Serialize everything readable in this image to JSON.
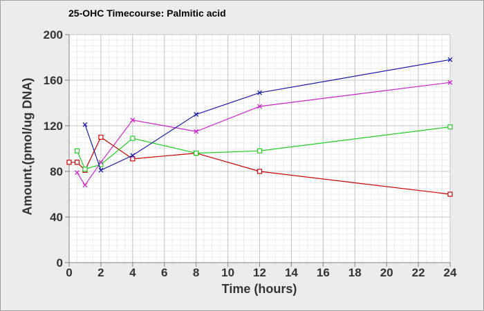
{
  "chart_data": {
    "type": "line",
    "title": "25-OHC Timecourse: Palmitic acid",
    "xlabel": "Time (hours)",
    "ylabel": "Amount.(pmol/ug DNA)",
    "xlim": [
      0,
      24
    ],
    "ylim": [
      0,
      200
    ],
    "xticks": [
      0,
      2,
      4,
      6,
      8,
      10,
      12,
      14,
      16,
      18,
      20,
      22,
      24
    ],
    "yticks": [
      0,
      40,
      80,
      120,
      160,
      200
    ],
    "grid": true,
    "legend": "none",
    "series": [
      {
        "color": "#cc0000",
        "marker": "square",
        "x": [
          0,
          0.5,
          1,
          2,
          4,
          8,
          12,
          24
        ],
        "y": [
          88,
          88,
          81,
          110,
          91,
          96,
          80,
          60
        ]
      },
      {
        "color": "#22cc22",
        "marker": "square",
        "x": [
          0.5,
          1,
          2,
          4,
          8,
          12,
          24
        ],
        "y": [
          98,
          82,
          86,
          109,
          96,
          98,
          119
        ]
      },
      {
        "color": "#cc22cc",
        "marker": "x",
        "x": [
          0.5,
          1,
          2,
          4,
          8,
          12,
          24
        ],
        "y": [
          79,
          68,
          88,
          125,
          115,
          137,
          158
        ]
      },
      {
        "color": "#1a1aa8",
        "marker": "x",
        "x": [
          1,
          2,
          4,
          8,
          12,
          24
        ],
        "y": [
          121,
          81,
          94,
          130,
          149,
          178
        ]
      }
    ]
  }
}
